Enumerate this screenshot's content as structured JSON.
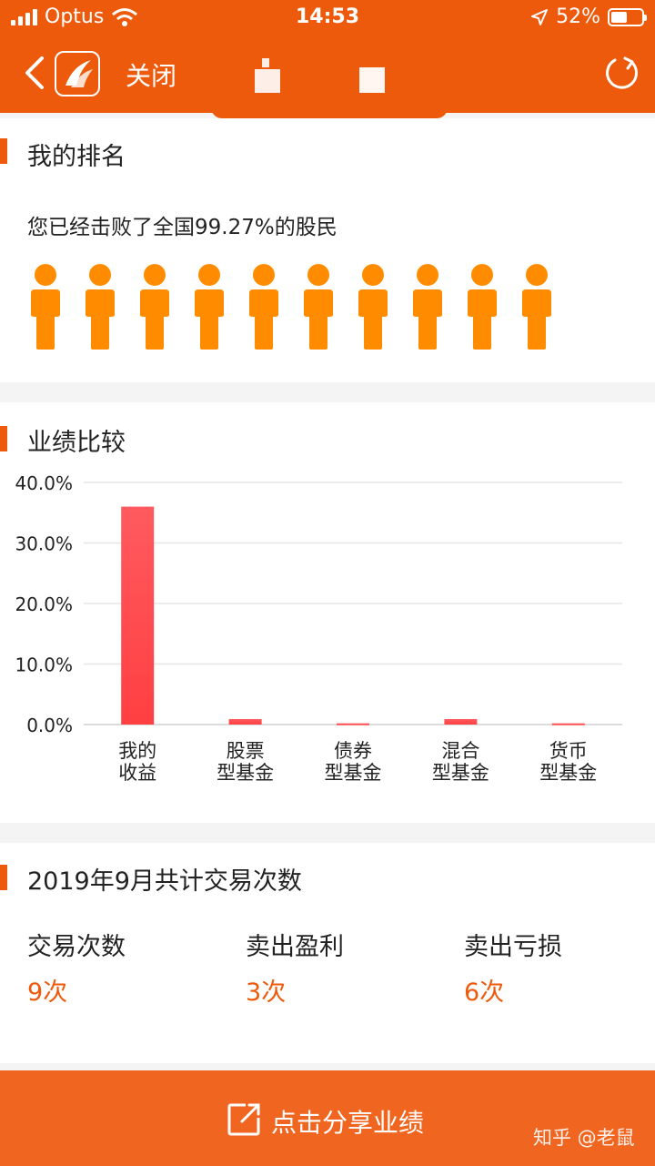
{
  "status_bar": {
    "carrier": "Optus",
    "time": "14:53",
    "battery_percent": "52%",
    "battery_level": 0.52
  },
  "nav": {
    "close_label": "关闭",
    "back_icon": "chevron-left-icon",
    "refresh_icon": "refresh-icon"
  },
  "ranking": {
    "title": "我的排名",
    "text": "您已经击败了全国99.27%的股民",
    "person_count": 10,
    "person_color": "#ff8c00"
  },
  "performance": {
    "title": "业绩比较"
  },
  "chart_data": {
    "type": "bar",
    "categories": [
      [
        "我的",
        "收益"
      ],
      [
        "股票",
        "型基金"
      ],
      [
        "债券",
        "型基金"
      ],
      [
        "混合",
        "型基金"
      ],
      [
        "货币",
        "型基金"
      ]
    ],
    "values": [
      36.0,
      0.9,
      0.2,
      0.9,
      0.2
    ],
    "y_ticks": [
      "40.0%",
      "30.0%",
      "20.0%",
      "10.0%",
      "0.0%"
    ],
    "ylim": [
      0,
      40
    ],
    "grid": true,
    "bar_color": "#ff3f42"
  },
  "trades": {
    "title": "2019年9月共计交易次数",
    "items": [
      {
        "label": "交易次数",
        "value": "9次"
      },
      {
        "label": "卖出盈利",
        "value": "3次"
      },
      {
        "label": "卖出亏损",
        "value": "6次"
      }
    ]
  },
  "share": {
    "label": "点击分享业绩"
  },
  "watermark": "知乎 @老鼠",
  "colors": {
    "brand": "#ee5a0c",
    "accent_text": "#ee5a0c",
    "bottom_bar": "#f0651f"
  }
}
